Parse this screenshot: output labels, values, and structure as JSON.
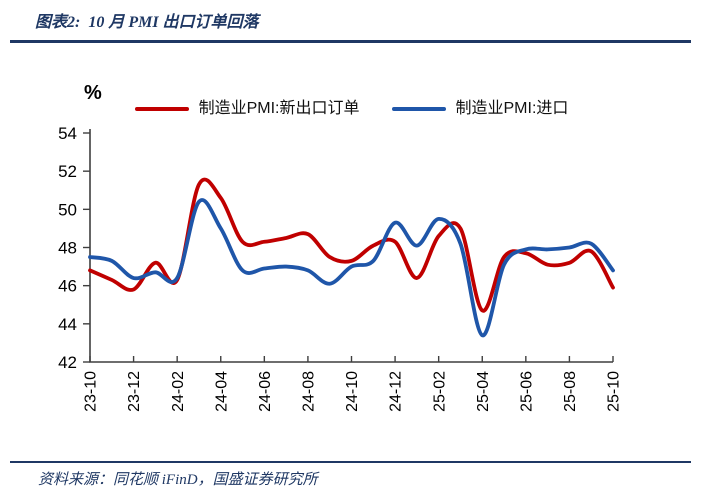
{
  "header": {
    "title": "图表2:  10 月 PMI 出口订单回落"
  },
  "footer": {
    "source": "资料来源：同花顺 iFinD，国盛证券研究所"
  },
  "chart_data": {
    "type": "line",
    "title": "10 月 PMI 出口订单回落",
    "unit_label": "%",
    "x": [
      "23-10",
      "23-11",
      "23-12",
      "24-01",
      "24-02",
      "24-03",
      "24-04",
      "24-05",
      "24-06",
      "24-07",
      "24-08",
      "24-09",
      "24-10",
      "24-11",
      "24-12",
      "25-01",
      "25-02",
      "25-03",
      "25-04",
      "25-05",
      "25-06",
      "25-07",
      "25-08",
      "25-09",
      "25-10"
    ],
    "x_tick_labels": [
      "23-10",
      "23-12",
      "24-02",
      "24-04",
      "24-06",
      "24-08",
      "24-10",
      "24-12",
      "25-02",
      "25-04",
      "25-06",
      "25-08",
      "25-10"
    ],
    "ylim": [
      42,
      54
    ],
    "y_ticks": [
      42,
      44,
      46,
      48,
      50,
      52,
      54
    ],
    "grid": false,
    "legend_position": "top",
    "axis_color": "#3f3f3f",
    "series": [
      {
        "name": "制造业PMI:新出口订单",
        "color": "#C00000",
        "values": [
          46.8,
          46.3,
          45.8,
          47.2,
          46.3,
          51.3,
          50.6,
          48.3,
          48.3,
          48.5,
          48.7,
          47.5,
          47.3,
          48.1,
          48.3,
          46.4,
          48.6,
          49.0,
          44.7,
          47.5,
          47.7,
          47.1,
          47.2,
          47.8,
          45.9
        ]
      },
      {
        "name": "制造业PMI:进口",
        "color": "#1F56A9",
        "values": [
          47.5,
          47.3,
          46.4,
          46.7,
          46.4,
          50.4,
          49.0,
          46.8,
          46.9,
          47.0,
          46.8,
          46.1,
          47.0,
          47.3,
          49.3,
          48.1,
          49.5,
          48.2,
          43.4,
          47.1,
          47.9,
          47.9,
          48.0,
          48.2,
          46.8
        ]
      }
    ]
  },
  "theme": {
    "navy": "#1F3864",
    "red": "#C00000",
    "blue": "#1F56A9"
  }
}
